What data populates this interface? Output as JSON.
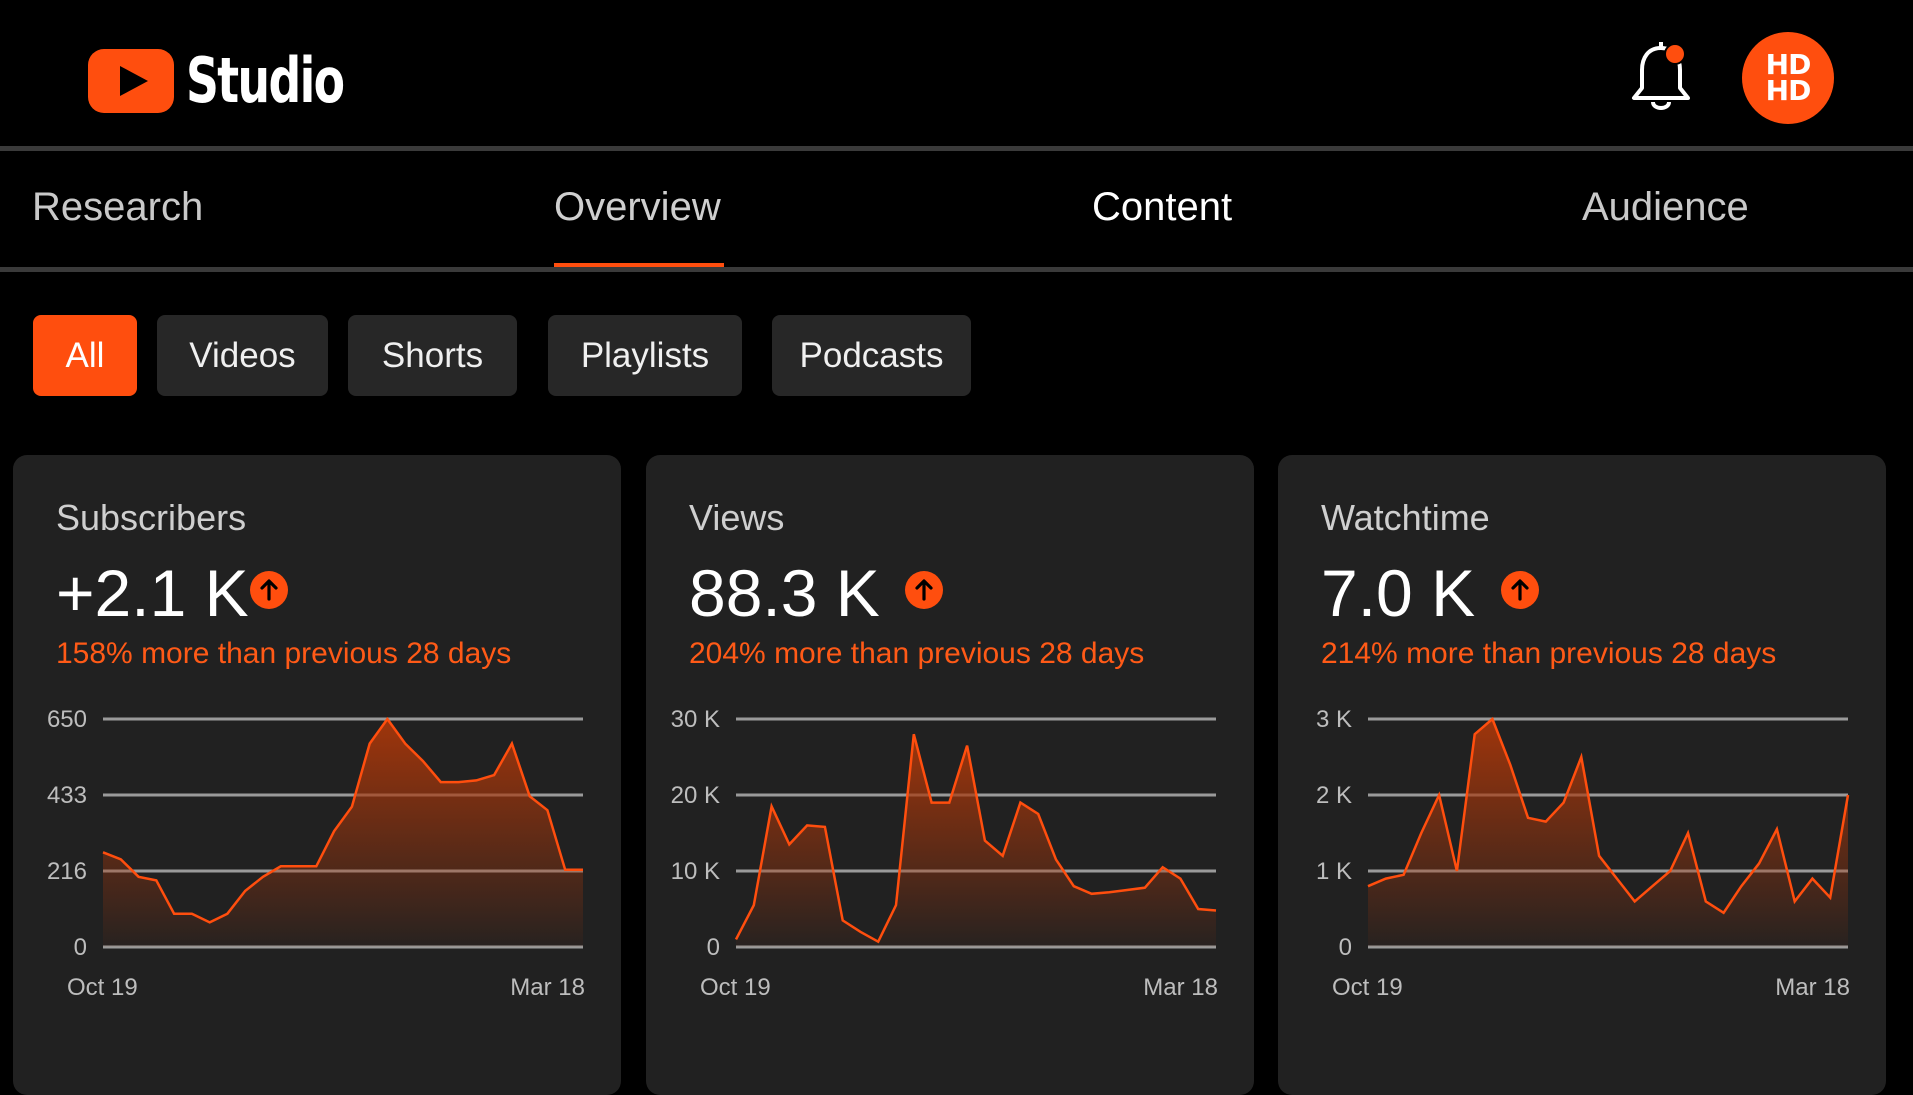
{
  "app": {
    "logo_text": "Studio",
    "avatar_line1": "HD",
    "avatar_line2": "HD"
  },
  "colors": {
    "accent": "#ff4e0e",
    "chart_fill": "#a6360a",
    "background": "#000000",
    "card": "#212121"
  },
  "icons": [
    "youtube-logo-icon",
    "bell-icon",
    "notification-dot-icon",
    "arrow-up-icon"
  ],
  "tabs": [
    {
      "label": "Research"
    },
    {
      "label": "Overview"
    },
    {
      "label": "Content"
    },
    {
      "label": "Audience"
    }
  ],
  "filters": [
    {
      "label": "All",
      "active": true
    },
    {
      "label": "Videos"
    },
    {
      "label": "Shorts"
    },
    {
      "label": "Playlists"
    },
    {
      "label": "Podcasts"
    }
  ],
  "cards": [
    {
      "label": "Subscribers",
      "value": "+2.1 K",
      "delta": "158% more than previous 28 days"
    },
    {
      "label": "Views",
      "value": "88.3 K",
      "delta": "204% more than previous 28 days"
    },
    {
      "label": "Watchtime",
      "value": "7.0 K",
      "delta": "214% more than previous 28 days"
    }
  ],
  "chart_data": [
    {
      "type": "area",
      "x_labels": [
        "Oct 19",
        "Mar 18"
      ],
      "ylim": [
        0,
        650
      ],
      "yticks": [
        "0",
        "216",
        "433",
        "650"
      ],
      "values": [
        270,
        250,
        200,
        190,
        95,
        95,
        70,
        95,
        160,
        200,
        230,
        230,
        230,
        330,
        400,
        580,
        650,
        580,
        530,
        470,
        470,
        475,
        490,
        580,
        430,
        390,
        220,
        220
      ]
    },
    {
      "type": "area",
      "x_labels": [
        "Oct 19",
        "Mar 18"
      ],
      "ylim": [
        0,
        30000
      ],
      "yticks": [
        "0",
        "10 K",
        "20 K",
        "30 K"
      ],
      "values": [
        1000,
        5500,
        18500,
        13500,
        16000,
        15800,
        3500,
        2000,
        700,
        5500,
        28000,
        19000,
        19000,
        26500,
        14000,
        12000,
        19000,
        17500,
        11500,
        8000,
        7000,
        7200,
        7500,
        7800,
        10500,
        9000,
        5000,
        4800
      ]
    },
    {
      "type": "area",
      "x_labels": [
        "Oct 19",
        "Mar 18"
      ],
      "ylim": [
        0,
        3000
      ],
      "yticks": [
        "0",
        "1 K",
        "2 K",
        "3 K"
      ],
      "values": [
        800,
        900,
        950,
        1500,
        2000,
        1000,
        2800,
        3000,
        2400,
        1700,
        1650,
        1900,
        2500,
        1200,
        900,
        600,
        800,
        1000,
        1500,
        600,
        450,
        800,
        1100,
        1550,
        600,
        900,
        650,
        2000
      ]
    }
  ]
}
